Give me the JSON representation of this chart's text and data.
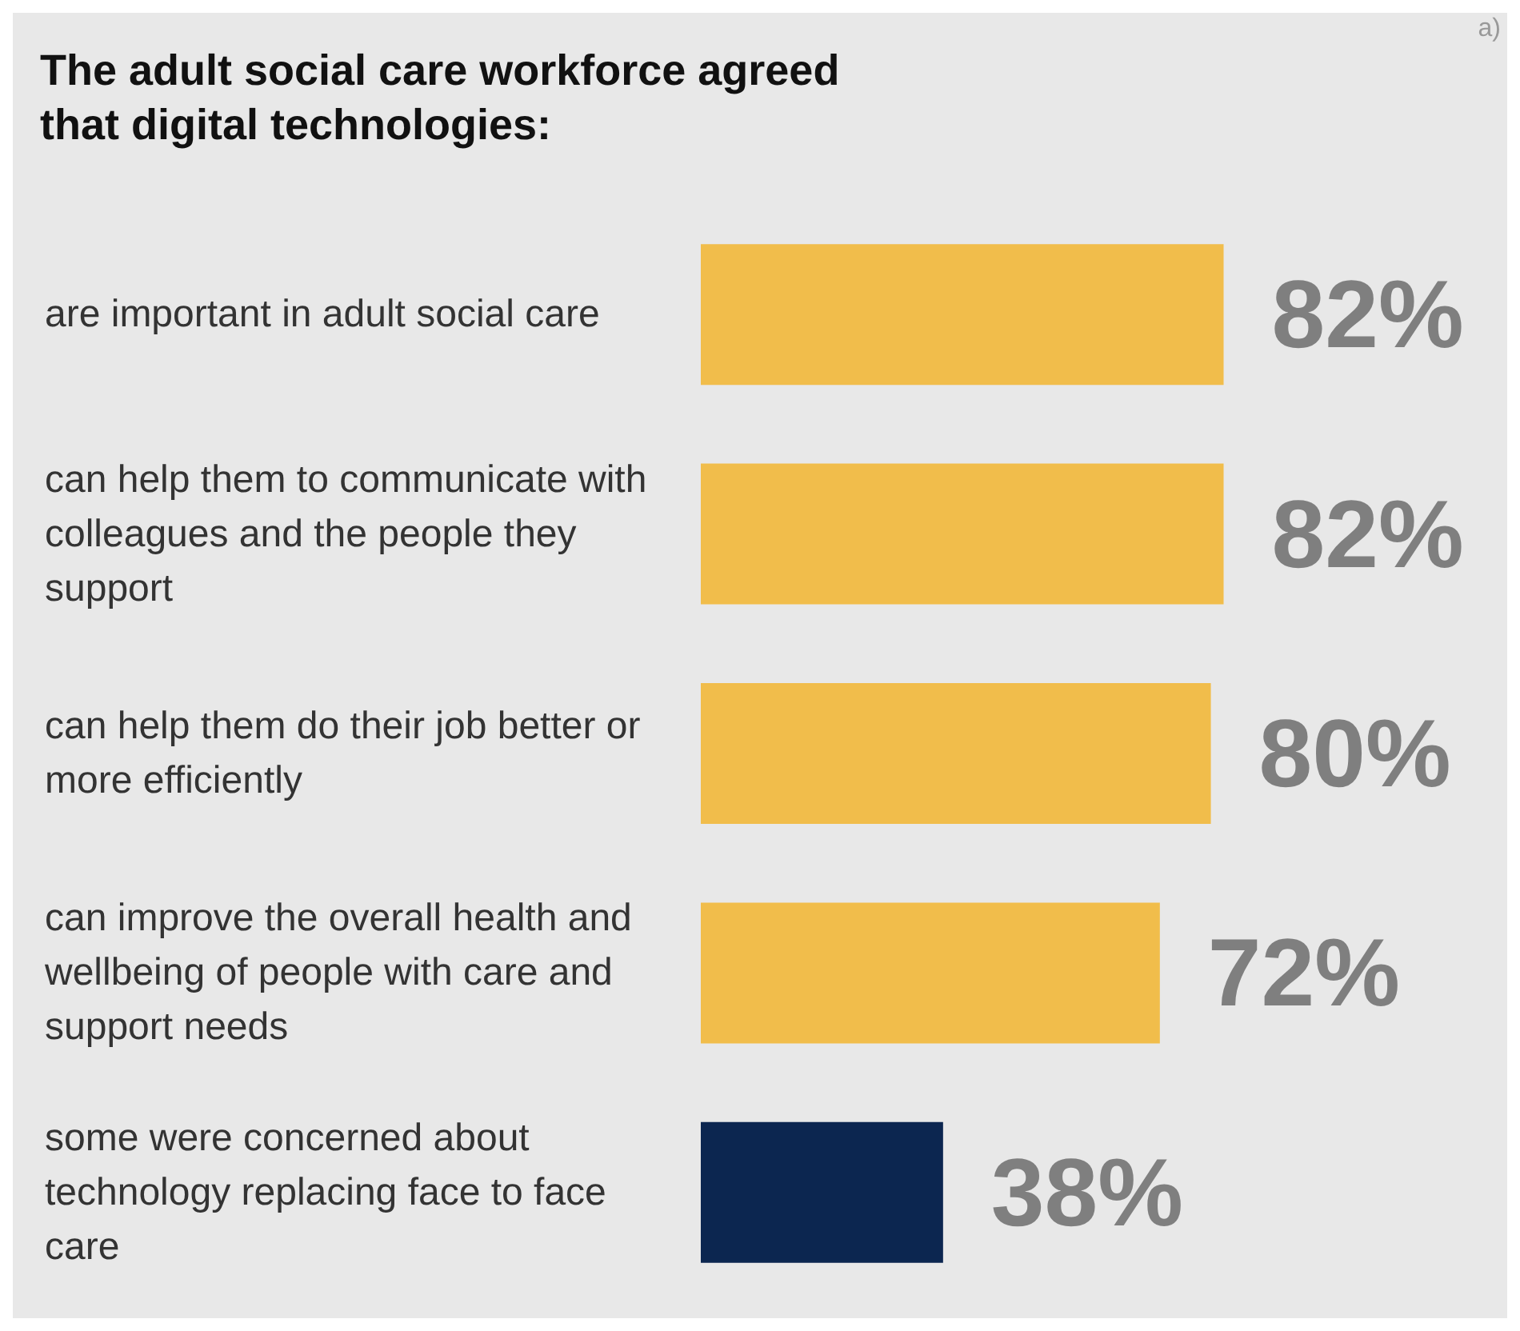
{
  "chart_data": {
    "type": "bar",
    "orientation": "horizontal",
    "title": "The adult social care workforce agreed that digital technologies:",
    "annotations": [
      "a)"
    ],
    "categories": [
      "are important in adult social care",
      "can help them to communicate with colleagues and the people they support",
      "can help them do their job better or more efficiently",
      "can improve the overall health and wellbeing of people with care and support needs",
      "some were concerned about technology replacing face to face care"
    ],
    "values": [
      82,
      82,
      80,
      72,
      38
    ],
    "colors": [
      "#f1bd4b",
      "#f1bd4b",
      "#f1bd4b",
      "#f1bd4b",
      "#0c2650"
    ],
    "value_labels": [
      "82%",
      "82%",
      "80%",
      "72%",
      "38%"
    ],
    "grid": false
  }
}
